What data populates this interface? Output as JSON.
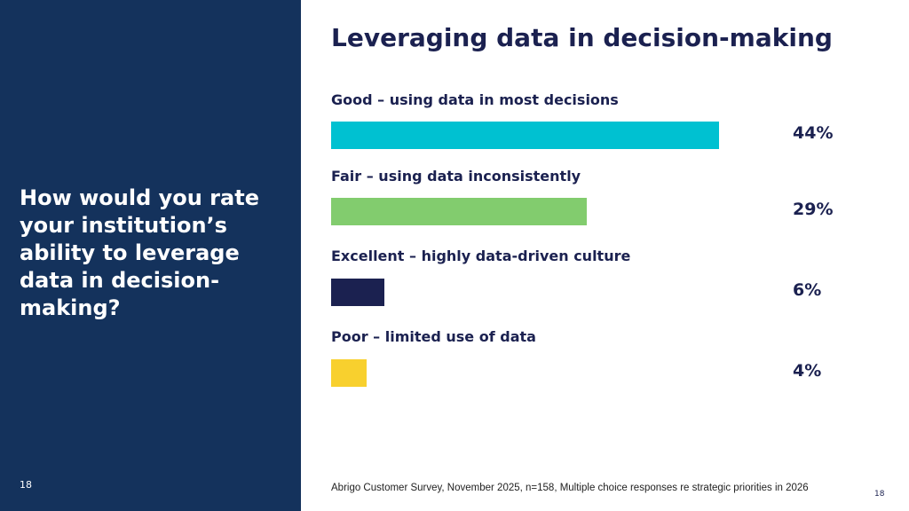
{
  "question": "How would you rate your institution’s ability to leverage data in decision-making?",
  "left_page_number": "18",
  "chart_data": {
    "type": "bar",
    "orientation": "horizontal",
    "title": "Leveraging data in decision-making",
    "categories": [
      "Good – using data in most decisions",
      "Fair – using data inconsistently",
      "Excellent – highly data-driven culture",
      "Poor – limited use of data"
    ],
    "values": [
      44,
      29,
      6,
      4
    ],
    "value_labels": [
      "44%",
      "29%",
      "6%",
      "4%"
    ],
    "colors": [
      "#00c1d1",
      "#82cc6e",
      "#1b2150",
      "#f8d02e"
    ],
    "xlabel": "",
    "ylabel": "",
    "xlim": [
      0,
      100
    ],
    "grid": false
  },
  "source": "Abrigo Customer Survey, November 2025, n=158, Multiple choice responses re strategic priorities in 2026",
  "right_page_number": "18"
}
